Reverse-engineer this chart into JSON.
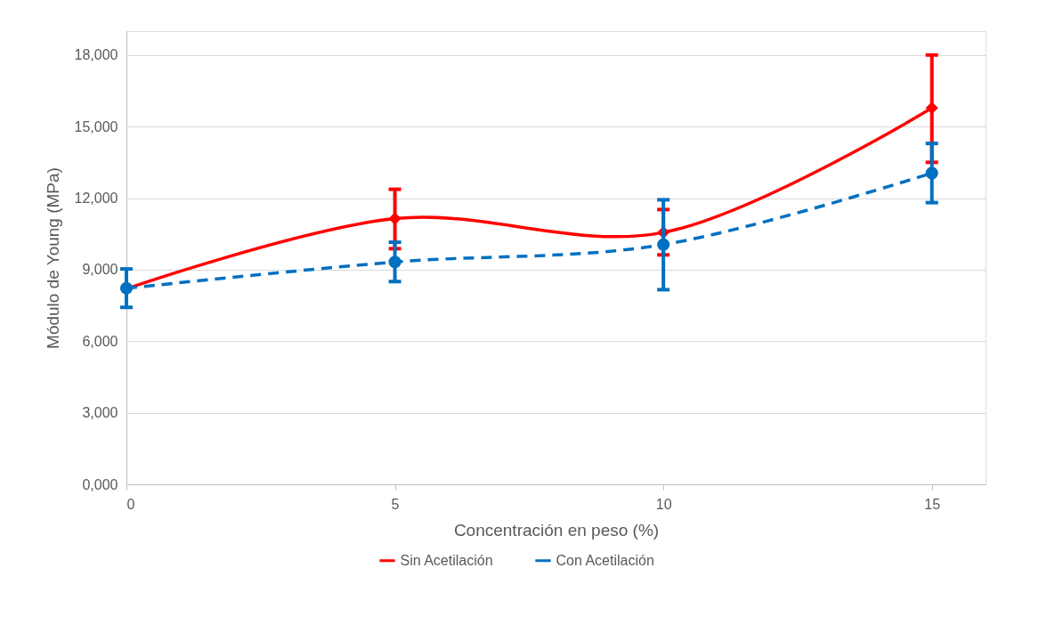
{
  "chart_data": {
    "type": "line",
    "xlabel": "Concentración en peso (%)",
    "ylabel": "Módulo de Young (MPa)",
    "x": [
      0,
      5,
      10,
      15
    ],
    "series": [
      {
        "name": "Sin Acetilación",
        "color": "#ff0000",
        "values": [
          8200,
          11140,
          10560,
          15780
        ],
        "marker": "diamond",
        "line_style": "solid",
        "errors": [
          null,
          [
            9880,
            12370
          ],
          [
            9620,
            11520
          ],
          [
            13500,
            18000
          ]
        ]
      },
      {
        "name": "Con Acetilación",
        "color": "#0070c0",
        "values": [
          8220,
          9320,
          10050,
          13050
        ],
        "marker": "circle",
        "line_style": "dashed",
        "errors": [
          [
            7420,
            9030
          ],
          [
            8500,
            10150
          ],
          [
            8160,
            11930
          ],
          [
            11810,
            14290
          ]
        ]
      }
    ],
    "xlim": [
      0,
      16
    ],
    "xticks": [
      0,
      5,
      10,
      15
    ],
    "ylim": [
      0,
      19000
    ],
    "yticks": [
      {
        "value": 0,
        "label": "0,000"
      },
      {
        "value": 3000,
        "label": "3,000"
      },
      {
        "value": 6000,
        "label": "6,000"
      },
      {
        "value": 9000,
        "label": "9,000"
      },
      {
        "value": 12000,
        "label": "12,000"
      },
      {
        "value": 15000,
        "label": "15,000"
      },
      {
        "value": 18000,
        "label": "18,000"
      }
    ],
    "grid": "y",
    "legend": "bottom"
  }
}
